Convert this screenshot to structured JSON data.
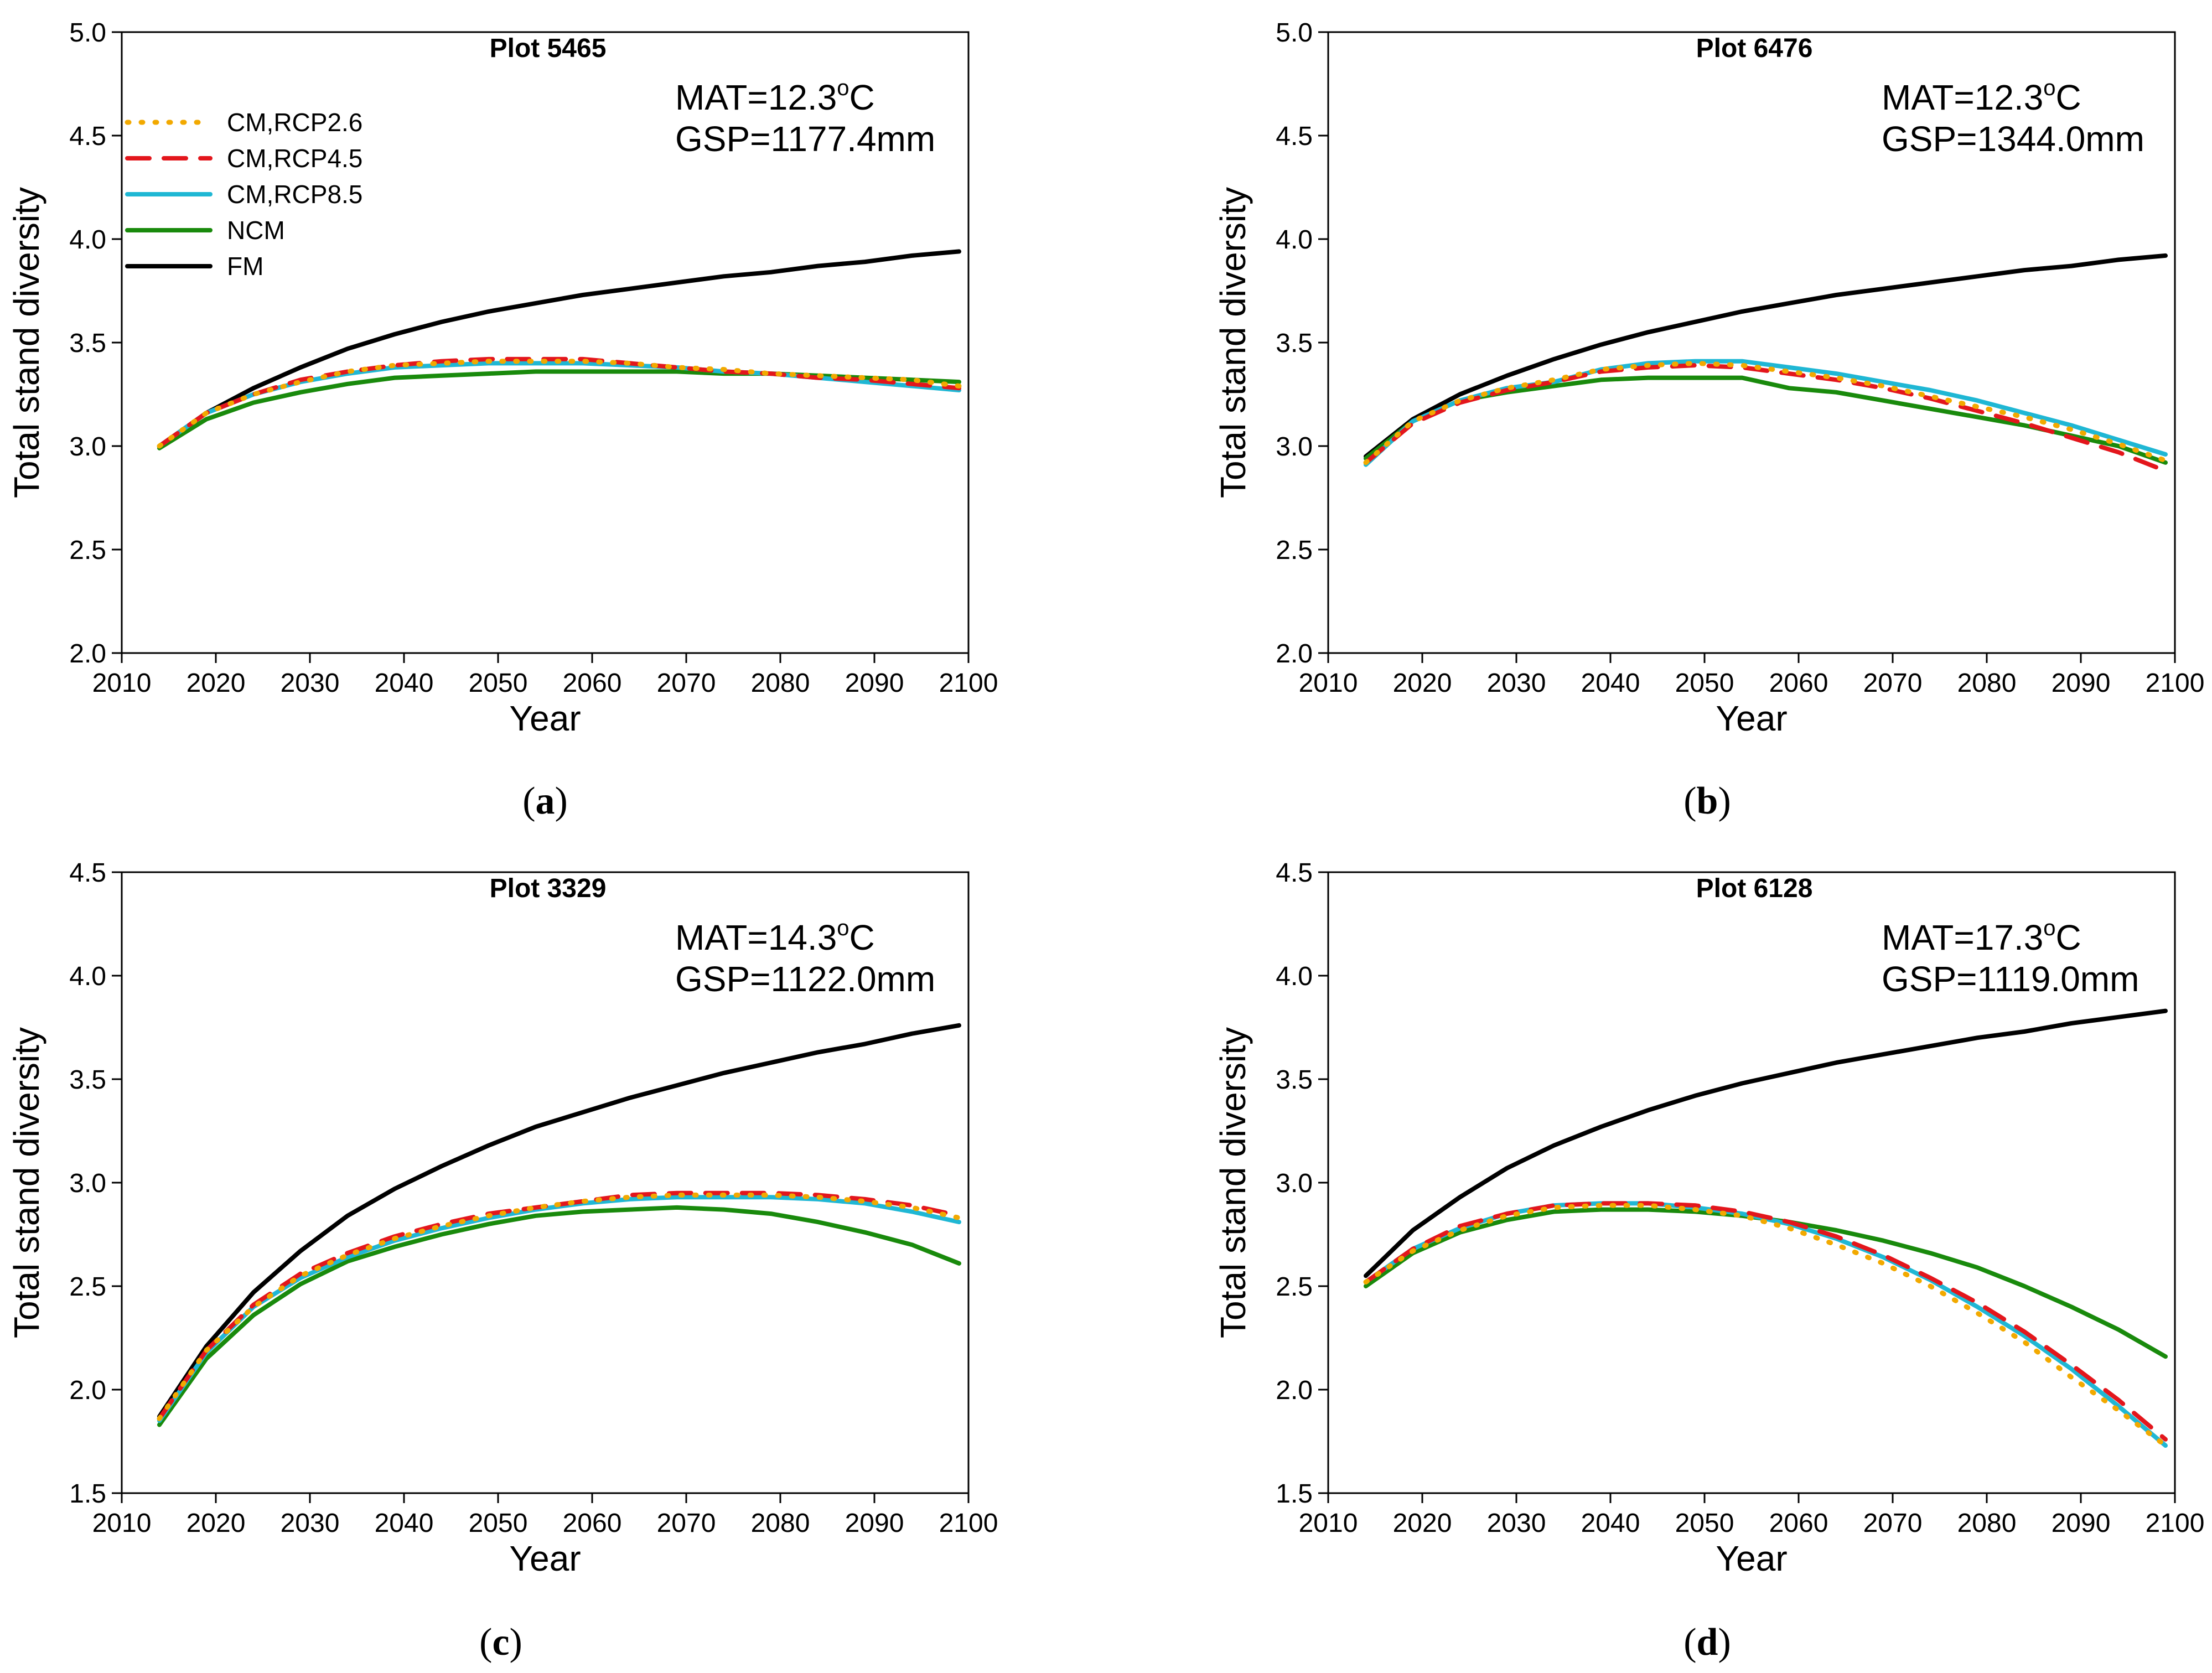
{
  "chart_data": [
    {
      "type": "line",
      "panel_label": "a",
      "title": "Plot 5465",
      "mat_label": "MAT=12.3",
      "mat_sup": "o",
      "mat_unit": "C",
      "gsp_label": "GSP=1177.4mm",
      "xlabel": "Year",
      "ylabel": "Total stand diversity",
      "xlim": [
        2010,
        2100
      ],
      "ylim": [
        2.0,
        5.0
      ],
      "xticks": [
        "2010",
        "2020",
        "2030",
        "2040",
        "2050",
        "2060",
        "2070",
        "2080",
        "2090",
        "2100"
      ],
      "yticks": [
        "2.0",
        "2.5",
        "3.0",
        "3.5",
        "4.0",
        "4.5",
        "5.0"
      ],
      "show_legend": true,
      "x": [
        2014,
        2019,
        2024,
        2029,
        2034,
        2039,
        2044,
        2049,
        2054,
        2059,
        2064,
        2069,
        2074,
        2079,
        2084,
        2089,
        2094,
        2099
      ],
      "series": [
        {
          "name": "CM,RCP2.6",
          "values": [
            3.0,
            3.16,
            3.25,
            3.31,
            3.36,
            3.39,
            3.4,
            3.41,
            3.41,
            3.41,
            3.4,
            3.38,
            3.37,
            3.35,
            3.34,
            3.33,
            3.32,
            3.29
          ]
        },
        {
          "name": "CM,RCP4.5",
          "values": [
            3.0,
            3.16,
            3.25,
            3.32,
            3.36,
            3.39,
            3.41,
            3.42,
            3.42,
            3.42,
            3.4,
            3.38,
            3.36,
            3.35,
            3.33,
            3.32,
            3.3,
            3.28
          ]
        },
        {
          "name": "CM,RCP8.5",
          "values": [
            3.0,
            3.16,
            3.25,
            3.31,
            3.35,
            3.38,
            3.39,
            3.4,
            3.4,
            3.4,
            3.39,
            3.38,
            3.36,
            3.35,
            3.33,
            3.31,
            3.29,
            3.27
          ]
        },
        {
          "name": "NCM",
          "values": [
            2.99,
            3.13,
            3.21,
            3.26,
            3.3,
            3.33,
            3.34,
            3.35,
            3.36,
            3.36,
            3.36,
            3.36,
            3.35,
            3.35,
            3.34,
            3.33,
            3.32,
            3.31
          ]
        },
        {
          "name": "FM",
          "values": [
            3.0,
            3.16,
            3.28,
            3.38,
            3.47,
            3.54,
            3.6,
            3.65,
            3.69,
            3.73,
            3.76,
            3.79,
            3.82,
            3.84,
            3.87,
            3.89,
            3.92,
            3.94
          ]
        }
      ]
    },
    {
      "type": "line",
      "panel_label": "b",
      "title": "Plot 6476",
      "mat_label": "MAT=12.3",
      "mat_sup": "o",
      "mat_unit": "C",
      "gsp_label": "GSP=1344.0mm",
      "xlabel": "Year",
      "ylabel": "Total stand diversity",
      "xlim": [
        2010,
        2100
      ],
      "ylim": [
        2.0,
        5.0
      ],
      "xticks": [
        "2010",
        "2020",
        "2030",
        "2040",
        "2050",
        "2060",
        "2070",
        "2080",
        "2090",
        "2100"
      ],
      "yticks": [
        "2.0",
        "2.5",
        "3.0",
        "3.5",
        "4.0",
        "4.5",
        "5.0"
      ],
      "show_legend": false,
      "x": [
        2014,
        2019,
        2024,
        2029,
        2034,
        2039,
        2044,
        2049,
        2054,
        2059,
        2064,
        2069,
        2074,
        2079,
        2084,
        2089,
        2094,
        2099
      ],
      "series": [
        {
          "name": "CM,RCP2.6",
          "values": [
            2.92,
            3.12,
            3.22,
            3.28,
            3.32,
            3.37,
            3.39,
            3.4,
            3.39,
            3.36,
            3.33,
            3.29,
            3.24,
            3.19,
            3.14,
            3.08,
            3.01,
            2.93
          ]
        },
        {
          "name": "CM,RCP4.5",
          "values": [
            2.92,
            3.11,
            3.21,
            3.27,
            3.31,
            3.36,
            3.38,
            3.39,
            3.38,
            3.35,
            3.32,
            3.28,
            3.23,
            3.17,
            3.11,
            3.04,
            2.97,
            2.88
          ]
        },
        {
          "name": "CM,RCP8.5",
          "values": [
            2.91,
            3.12,
            3.22,
            3.28,
            3.31,
            3.37,
            3.4,
            3.41,
            3.41,
            3.38,
            3.35,
            3.31,
            3.27,
            3.22,
            3.16,
            3.1,
            3.03,
            2.96
          ]
        },
        {
          "name": "NCM",
          "values": [
            2.94,
            3.12,
            3.22,
            3.26,
            3.29,
            3.32,
            3.33,
            3.33,
            3.33,
            3.28,
            3.26,
            3.22,
            3.18,
            3.14,
            3.1,
            3.05,
            3.0,
            2.92
          ]
        },
        {
          "name": "FM",
          "values": [
            2.95,
            3.13,
            3.25,
            3.34,
            3.42,
            3.49,
            3.55,
            3.6,
            3.65,
            3.69,
            3.73,
            3.76,
            3.79,
            3.82,
            3.85,
            3.87,
            3.9,
            3.92
          ]
        }
      ]
    },
    {
      "type": "line",
      "panel_label": "c",
      "title": "Plot 3329",
      "mat_label": "MAT=14.3",
      "mat_sup": "o",
      "mat_unit": "C",
      "gsp_label": "GSP=1122.0mm",
      "xlabel": "Year",
      "ylabel": "Total stand diversity",
      "xlim": [
        2010,
        2100
      ],
      "ylim": [
        1.5,
        4.5
      ],
      "xticks": [
        "2010",
        "2020",
        "2030",
        "2040",
        "2050",
        "2060",
        "2070",
        "2080",
        "2090",
        "2100"
      ],
      "yticks": [
        "1.5",
        "2.0",
        "2.5",
        "3.0",
        "3.5",
        "4.0",
        "4.5"
      ],
      "show_legend": false,
      "x": [
        2014,
        2019,
        2024,
        2029,
        2034,
        2039,
        2044,
        2049,
        2054,
        2059,
        2064,
        2069,
        2074,
        2079,
        2084,
        2089,
        2094,
        2099
      ],
      "series": [
        {
          "name": "CM,RCP2.6",
          "values": [
            1.86,
            2.19,
            2.4,
            2.55,
            2.65,
            2.73,
            2.79,
            2.84,
            2.88,
            2.91,
            2.93,
            2.94,
            2.94,
            2.94,
            2.93,
            2.91,
            2.88,
            2.83
          ]
        },
        {
          "name": "CM,RCP4.5",
          "values": [
            1.86,
            2.19,
            2.41,
            2.56,
            2.66,
            2.74,
            2.8,
            2.85,
            2.88,
            2.91,
            2.94,
            2.95,
            2.95,
            2.95,
            2.94,
            2.92,
            2.89,
            2.84
          ]
        },
        {
          "name": "CM,RCP8.5",
          "values": [
            1.85,
            2.18,
            2.4,
            2.54,
            2.64,
            2.72,
            2.78,
            2.83,
            2.87,
            2.9,
            2.92,
            2.93,
            2.93,
            2.93,
            2.92,
            2.9,
            2.86,
            2.81
          ]
        },
        {
          "name": "NCM",
          "values": [
            1.83,
            2.15,
            2.36,
            2.51,
            2.62,
            2.69,
            2.75,
            2.8,
            2.84,
            2.86,
            2.87,
            2.88,
            2.87,
            2.85,
            2.81,
            2.76,
            2.7,
            2.61
          ]
        },
        {
          "name": "FM",
          "values": [
            1.87,
            2.21,
            2.47,
            2.67,
            2.84,
            2.97,
            3.08,
            3.18,
            3.27,
            3.34,
            3.41,
            3.47,
            3.53,
            3.58,
            3.63,
            3.67,
            3.72,
            3.76
          ]
        }
      ]
    },
    {
      "type": "line",
      "panel_label": "d",
      "title": "Plot 6128",
      "mat_label": "MAT=17.3",
      "mat_sup": "o",
      "mat_unit": "C",
      "gsp_label": "GSP=1119.0mm",
      "xlabel": "Year",
      "ylabel": "Total stand diversity",
      "xlim": [
        2010,
        2100
      ],
      "ylim": [
        1.5,
        4.5
      ],
      "xticks": [
        "2010",
        "2020",
        "2030",
        "2040",
        "2050",
        "2060",
        "2070",
        "2080",
        "2090",
        "2100"
      ],
      "yticks": [
        "1.5",
        "2.0",
        "2.5",
        "3.0",
        "3.5",
        "4.0",
        "4.5"
      ],
      "show_legend": false,
      "x": [
        2014,
        2019,
        2024,
        2029,
        2034,
        2039,
        2044,
        2049,
        2054,
        2059,
        2064,
        2069,
        2074,
        2079,
        2084,
        2089,
        2094,
        2099
      ],
      "series": [
        {
          "name": "CM,RCP2.6",
          "values": [
            2.52,
            2.67,
            2.77,
            2.84,
            2.88,
            2.89,
            2.89,
            2.87,
            2.84,
            2.78,
            2.7,
            2.61,
            2.5,
            2.37,
            2.23,
            2.06,
            1.9,
            1.73
          ]
        },
        {
          "name": "CM,RCP4.5",
          "values": [
            2.52,
            2.68,
            2.79,
            2.85,
            2.89,
            2.9,
            2.9,
            2.89,
            2.86,
            2.81,
            2.74,
            2.65,
            2.54,
            2.42,
            2.28,
            2.12,
            1.95,
            1.76
          ]
        },
        {
          "name": "CM,RCP8.5",
          "values": [
            2.52,
            2.68,
            2.78,
            2.85,
            2.89,
            2.9,
            2.9,
            2.88,
            2.85,
            2.8,
            2.73,
            2.64,
            2.53,
            2.4,
            2.26,
            2.1,
            1.92,
            1.73
          ]
        },
        {
          "name": "NCM",
          "values": [
            2.5,
            2.66,
            2.76,
            2.82,
            2.86,
            2.87,
            2.87,
            2.86,
            2.84,
            2.81,
            2.77,
            2.72,
            2.66,
            2.59,
            2.5,
            2.4,
            2.29,
            2.16
          ]
        },
        {
          "name": "FM",
          "values": [
            2.55,
            2.77,
            2.93,
            3.07,
            3.18,
            3.27,
            3.35,
            3.42,
            3.48,
            3.53,
            3.58,
            3.62,
            3.66,
            3.7,
            3.73,
            3.77,
            3.8,
            3.83
          ]
        }
      ]
    }
  ],
  "series_styles": [
    {
      "name": "CM,RCP2.6",
      "color": "#f2a900",
      "dash": "dotted"
    },
    {
      "name": "CM,RCP4.5",
      "color": "#e3161c",
      "dash": "dashed"
    },
    {
      "name": "CM,RCP8.5",
      "color": "#1fb7d4",
      "dash": "solid"
    },
    {
      "name": "NCM",
      "color": "#198a0c",
      "dash": "solid"
    },
    {
      "name": "FM",
      "color": "#000000",
      "dash": "solid"
    }
  ]
}
